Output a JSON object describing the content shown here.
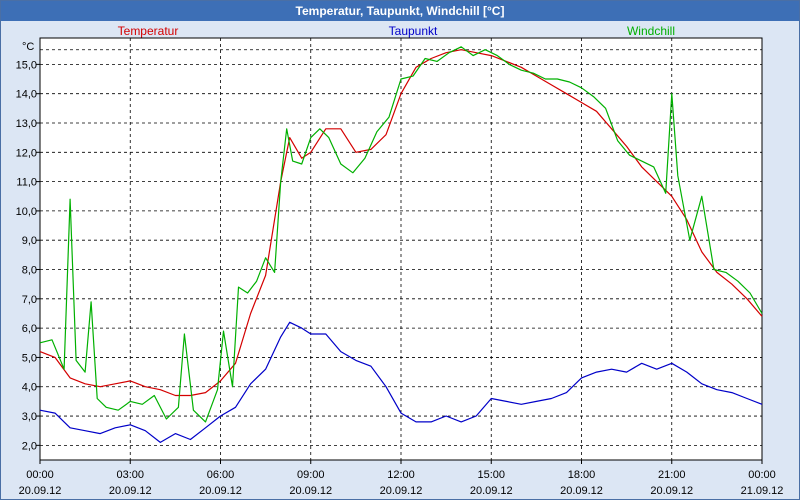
{
  "window": {
    "title": "Temperatur, Taupunkt, Windchill [°C]"
  },
  "chart_data": {
    "type": "line",
    "title": "Temperatur, Taupunkt, Windchill [°C]",
    "ylabel": "°C",
    "ylim": [
      1.5,
      15.9
    ],
    "yticks": [
      "2,0",
      "3,0",
      "4,0",
      "5,0",
      "6,0",
      "7,0",
      "8,0",
      "9,0",
      "10,0",
      "11,0",
      "12,0",
      "13,0",
      "14,0",
      "15,0"
    ],
    "ytick_values": [
      2,
      3,
      4,
      5,
      6,
      7,
      8,
      9,
      10,
      11,
      12,
      13,
      14,
      15
    ],
    "xlim": [
      0,
      24
    ],
    "xtick_values": [
      0,
      3,
      6,
      9,
      12,
      15,
      18,
      21,
      24
    ],
    "xtick_times": [
      "00:00",
      "03:00",
      "06:00",
      "09:00",
      "12:00",
      "15:00",
      "18:00",
      "21:00",
      "00:00"
    ],
    "xtick_dates": [
      "20.09.12",
      "20.09.12",
      "20.09.12",
      "20.09.12",
      "20.09.12",
      "20.09.12",
      "20.09.12",
      "20.09.12",
      "21.09.12"
    ],
    "grid": true,
    "series": [
      {
        "name": "Temperatur",
        "color": "#d40000",
        "x": [
          0,
          0.5,
          1,
          1.5,
          2,
          2.5,
          3,
          3.5,
          4,
          4.5,
          5,
          5.5,
          6,
          6.5,
          7,
          7.5,
          8,
          8.3,
          8.7,
          9,
          9.5,
          10,
          10.5,
          11,
          11.5,
          12,
          12.5,
          13,
          13.5,
          14,
          14.5,
          15,
          15.5,
          16,
          16.5,
          17,
          17.5,
          18,
          18.5,
          19,
          19.5,
          20,
          20.5,
          21,
          21.5,
          22,
          22.5,
          23,
          23.5,
          24
        ],
        "values": [
          5.2,
          5.0,
          4.3,
          4.1,
          4.0,
          4.1,
          4.2,
          4.0,
          3.9,
          3.7,
          3.7,
          3.8,
          4.2,
          4.8,
          6.5,
          7.8,
          11.0,
          12.5,
          11.8,
          12.0,
          12.8,
          12.8,
          12.0,
          12.1,
          12.6,
          14.0,
          14.9,
          15.2,
          15.4,
          15.5,
          15.4,
          15.3,
          15.1,
          14.9,
          14.6,
          14.3,
          14.0,
          13.7,
          13.4,
          12.8,
          12.2,
          11.5,
          11.0,
          10.5,
          9.7,
          8.6,
          7.9,
          7.5,
          7.0,
          6.4
        ]
      },
      {
        "name": "Taupunkt",
        "color": "#0000c8",
        "x": [
          0,
          0.5,
          1,
          1.5,
          2,
          2.5,
          3,
          3.5,
          4,
          4.5,
          5,
          5.5,
          6,
          6.5,
          7,
          7.5,
          8,
          8.3,
          8.7,
          9,
          9.5,
          10,
          10.5,
          11,
          11.5,
          12,
          12.5,
          13,
          13.5,
          14,
          14.5,
          15,
          15.5,
          16,
          16.5,
          17,
          17.5,
          18,
          18.5,
          19,
          19.5,
          20,
          20.5,
          21,
          21.5,
          22,
          22.5,
          23,
          23.5,
          24
        ],
        "values": [
          3.2,
          3.1,
          2.6,
          2.5,
          2.4,
          2.6,
          2.7,
          2.5,
          2.1,
          2.4,
          2.2,
          2.6,
          3.0,
          3.3,
          4.1,
          4.6,
          5.7,
          6.2,
          6.0,
          5.8,
          5.8,
          5.2,
          4.9,
          4.7,
          4.0,
          3.1,
          2.8,
          2.8,
          3.0,
          2.8,
          3.0,
          3.6,
          3.5,
          3.4,
          3.5,
          3.6,
          3.8,
          4.3,
          4.5,
          4.6,
          4.5,
          4.8,
          4.6,
          4.8,
          4.5,
          4.1,
          3.9,
          3.8,
          3.6,
          3.4
        ]
      },
      {
        "name": "Windchill",
        "color": "#00b000",
        "x": [
          0,
          0.4,
          0.8,
          1,
          1.2,
          1.5,
          1.7,
          1.9,
          2.2,
          2.6,
          3,
          3.4,
          3.8,
          4.2,
          4.6,
          4.8,
          5.1,
          5.5,
          5.9,
          6.1,
          6.4,
          6.6,
          6.9,
          7.2,
          7.5,
          7.8,
          8,
          8.2,
          8.4,
          8.7,
          9,
          9.3,
          9.6,
          10,
          10.4,
          10.8,
          11.2,
          11.6,
          12,
          12.4,
          12.8,
          13.2,
          13.6,
          14,
          14.4,
          14.8,
          15.2,
          15.6,
          16,
          16.4,
          16.8,
          17.2,
          17.6,
          18,
          18.4,
          18.8,
          19.2,
          19.6,
          20,
          20.4,
          20.8,
          21,
          21.2,
          21.6,
          22,
          22.4,
          22.8,
          23.2,
          23.6,
          24
        ],
        "values": [
          5.5,
          5.6,
          4.6,
          10.4,
          4.9,
          4.5,
          6.9,
          3.6,
          3.3,
          3.2,
          3.5,
          3.4,
          3.7,
          2.9,
          3.3,
          5.8,
          3.2,
          2.8,
          3.9,
          5.9,
          4.0,
          7.4,
          7.2,
          7.6,
          8.4,
          7.9,
          11.0,
          12.8,
          11.7,
          11.6,
          12.5,
          12.8,
          12.5,
          11.6,
          11.3,
          11.8,
          12.7,
          13.2,
          14.5,
          14.6,
          15.2,
          15.1,
          15.4,
          15.6,
          15.3,
          15.5,
          15.3,
          15.0,
          14.8,
          14.7,
          14.5,
          14.5,
          14.4,
          14.2,
          13.9,
          13.5,
          12.4,
          11.9,
          11.7,
          11.5,
          10.6,
          14.0,
          11.2,
          9.0,
          10.5,
          8.0,
          7.9,
          7.6,
          7.2,
          6.5
        ]
      }
    ]
  }
}
